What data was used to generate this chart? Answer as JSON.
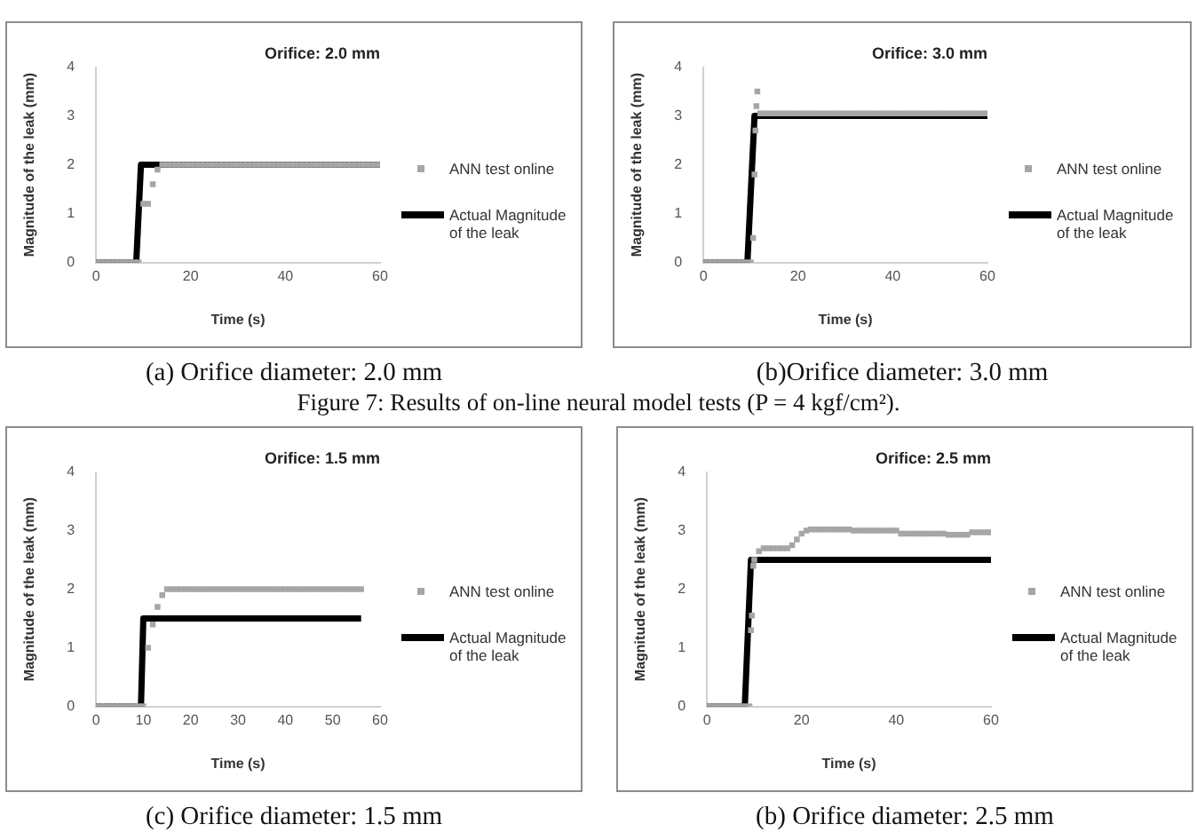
{
  "chart_data": [
    {
      "type": "line",
      "title": "Orifice: 2.0 mm",
      "xlabel": "Time (s)",
      "ylabel": "Magnitude of the leak (mm)",
      "xlim": [
        0,
        60
      ],
      "xticks": [
        0,
        20,
        40,
        60
      ],
      "ylim": [
        0,
        4
      ],
      "yticks": [
        0,
        1,
        2,
        3,
        4
      ],
      "grid": false,
      "legend": "right",
      "annotations": [
        "(a) Orifice diameter: 2.0 mm",
        "Figure 7: Results of on-line neural model tests (P = 4 kgf/cm²)."
      ],
      "series": [
        {
          "name": "ANN test online",
          "type": "scatter",
          "marker": "square",
          "color": "#a6a6a6",
          "x": [
            0,
            1,
            2,
            3,
            4,
            5,
            6,
            7,
            8,
            9,
            10,
            11,
            12,
            13,
            14,
            15,
            16,
            17,
            18,
            19,
            20,
            21,
            22,
            23,
            24,
            25,
            26,
            27,
            28,
            29,
            30,
            31,
            32,
            33,
            34,
            35,
            36,
            37,
            38,
            39,
            40,
            41,
            42,
            43,
            44,
            45,
            46,
            47,
            48,
            49,
            50,
            51,
            52,
            53,
            54,
            55,
            56,
            57,
            58,
            59,
            60
          ],
          "values": [
            0,
            0,
            0,
            0,
            0,
            0,
            0,
            0,
            0,
            0,
            1.2,
            1.2,
            1.6,
            1.9,
            2,
            2,
            2,
            2,
            2,
            2,
            2,
            2,
            2,
            2,
            2,
            2,
            2,
            2,
            2,
            2,
            2,
            2,
            2,
            2,
            2,
            2,
            2,
            2,
            2,
            2,
            2,
            2,
            2,
            2,
            2,
            2,
            2,
            2,
            2,
            2,
            2,
            2,
            2,
            2,
            2,
            2,
            2,
            2,
            2,
            2,
            2
          ]
        },
        {
          "name": "Actual Magnitude of the leak",
          "color": "#000000",
          "x": [
            0,
            8.5,
            9.5,
            60
          ],
          "values": [
            0,
            0,
            2,
            2
          ]
        }
      ]
    },
    {
      "type": "line",
      "title": "Orifice: 3.0 mm",
      "xlabel": "Time (s)",
      "ylabel": "Magnitude of the leak (mm)",
      "xlim": [
        0,
        60
      ],
      "xticks": [
        0,
        20,
        40,
        60
      ],
      "ylim": [
        0,
        4
      ],
      "yticks": [
        0,
        1,
        2,
        3,
        4
      ],
      "grid": false,
      "legend": "right",
      "annotations": [
        "(b)Orifice diameter: 3.0 mm"
      ],
      "series": [
        {
          "name": "ANN test online",
          "type": "scatter",
          "marker": "square",
          "color": "#a6a6a6",
          "x": [
            0,
            1,
            2,
            3,
            4,
            5,
            6,
            7,
            8,
            9,
            10,
            10.5,
            10.8,
            11,
            11.2,
            11.4,
            12,
            13,
            14,
            15,
            16,
            17,
            18,
            19,
            20,
            21,
            22,
            23,
            24,
            25,
            26,
            27,
            28,
            29,
            30,
            31,
            32,
            33,
            34,
            35,
            36,
            37,
            38,
            39,
            40,
            41,
            42,
            43,
            44,
            45,
            46,
            47,
            48,
            49,
            50,
            51,
            52,
            53,
            54,
            55,
            56,
            57,
            58,
            59,
            60
          ],
          "values": [
            0,
            0,
            0,
            0,
            0,
            0,
            0,
            0,
            0,
            0,
            0,
            0.5,
            1.8,
            2.7,
            3.2,
            3.5,
            3.05,
            3.05,
            3.05,
            3.05,
            3.05,
            3.05,
            3.05,
            3.05,
            3.05,
            3.05,
            3.05,
            3.05,
            3.05,
            3.05,
            3.05,
            3.05,
            3.05,
            3.05,
            3.05,
            3.05,
            3.05,
            3.05,
            3.05,
            3.05,
            3.05,
            3.05,
            3.05,
            3.05,
            3.05,
            3.05,
            3.05,
            3.05,
            3.05,
            3.05,
            3.05,
            3.05,
            3.05,
            3.05,
            3.05,
            3.05,
            3.05,
            3.05,
            3.05,
            3.05,
            3.05,
            3.05,
            3.05,
            3.05,
            3.05
          ]
        },
        {
          "name": "Actual Magnitude of the leak",
          "color": "#000000",
          "x": [
            0,
            9.3,
            10.8,
            60
          ],
          "values": [
            0,
            0,
            3,
            3
          ]
        }
      ]
    },
    {
      "type": "line",
      "title": "Orifice: 1.5 mm",
      "xlabel": "Time (s)",
      "ylabel": "Magnitude of the leak (mm)",
      "xlim": [
        0,
        60
      ],
      "xticks": [
        0,
        10,
        20,
        30,
        40,
        50,
        60
      ],
      "ylim": [
        0,
        4
      ],
      "yticks": [
        0,
        1,
        2,
        3,
        4
      ],
      "grid": false,
      "legend": "right",
      "annotations": [
        "(c) Orifice diameter: 1.5 mm"
      ],
      "series": [
        {
          "name": "ANN test online",
          "type": "scatter",
          "marker": "square",
          "color": "#a6a6a6",
          "x": [
            0,
            1,
            2,
            3,
            4,
            5,
            6,
            7,
            8,
            9,
            10,
            11,
            12,
            13,
            14,
            15,
            16,
            17,
            18,
            19,
            20,
            21,
            22,
            23,
            24,
            25,
            26,
            27,
            28,
            29,
            30,
            31,
            32,
            33,
            34,
            35,
            36,
            37,
            38,
            39,
            40,
            41,
            42,
            43,
            44,
            45,
            46,
            47,
            48,
            49,
            50,
            51,
            52,
            53,
            54,
            55,
            56
          ],
          "values": [
            0,
            0,
            0,
            0,
            0,
            0,
            0,
            0,
            0,
            0,
            0,
            1,
            1.4,
            1.7,
            1.9,
            2,
            2,
            2,
            2,
            2,
            2,
            2,
            2,
            2,
            2,
            2,
            2,
            2,
            2,
            2,
            2,
            2,
            2,
            2,
            2,
            2,
            2,
            2,
            2,
            2,
            2,
            2,
            2,
            2,
            2,
            2,
            2,
            2,
            2,
            2,
            2,
            2,
            2,
            2,
            2,
            2,
            2
          ]
        },
        {
          "name": "Actual Magnitude of the leak",
          "color": "#000000",
          "x": [
            0,
            9.5,
            10,
            56
          ],
          "values": [
            0,
            0,
            1.5,
            1.5
          ]
        }
      ]
    },
    {
      "type": "line",
      "title": "Orifice: 2.5 mm",
      "xlabel": "Time (s)",
      "ylabel": "Magnitude of the leak (mm)",
      "xlim": [
        0,
        60
      ],
      "xticks": [
        0,
        20,
        40,
        60
      ],
      "ylim": [
        0,
        4
      ],
      "yticks": [
        0,
        1,
        2,
        3,
        4
      ],
      "grid": false,
      "legend": "right",
      "annotations": [
        "(b) Orifice diameter: 2.5 mm"
      ],
      "series": [
        {
          "name": "ANN test online",
          "type": "scatter",
          "marker": "square",
          "color": "#a6a6a6",
          "x": [
            0,
            1,
            2,
            3,
            4,
            5,
            6,
            7,
            8,
            9,
            9.3,
            9.5,
            9.8,
            10,
            11,
            12,
            13,
            14,
            15,
            16,
            17,
            18,
            19,
            20,
            21,
            22,
            23,
            24,
            25,
            26,
            27,
            28,
            29,
            30,
            31,
            32,
            33,
            34,
            35,
            36,
            37,
            38,
            39,
            40,
            41,
            42,
            43,
            44,
            45,
            46,
            47,
            48,
            49,
            50,
            51,
            52,
            53,
            54,
            55,
            56,
            57,
            58,
            59,
            60
          ],
          "values": [
            0,
            0,
            0,
            0,
            0,
            0,
            0,
            0,
            0,
            0,
            1.3,
            1.55,
            2.4,
            2.5,
            2.65,
            2.7,
            2.7,
            2.7,
            2.7,
            2.7,
            2.7,
            2.75,
            2.85,
            2.95,
            3,
            3.02,
            3.02,
            3.02,
            3.02,
            3.02,
            3.02,
            3.02,
            3.02,
            3.02,
            3,
            3,
            3,
            3,
            3,
            3,
            3,
            3,
            3,
            3,
            2.95,
            2.95,
            2.95,
            2.95,
            2.95,
            2.95,
            2.95,
            2.95,
            2.95,
            2.95,
            2.93,
            2.93,
            2.93,
            2.93,
            2.93,
            2.97,
            2.97,
            2.97,
            2.97,
            2.97
          ]
        },
        {
          "name": "Actual Magnitude of the leak",
          "color": "#000000",
          "x": [
            0,
            8,
            9.3,
            60
          ],
          "values": [
            0,
            0,
            2.5,
            2.5
          ]
        }
      ]
    }
  ]
}
